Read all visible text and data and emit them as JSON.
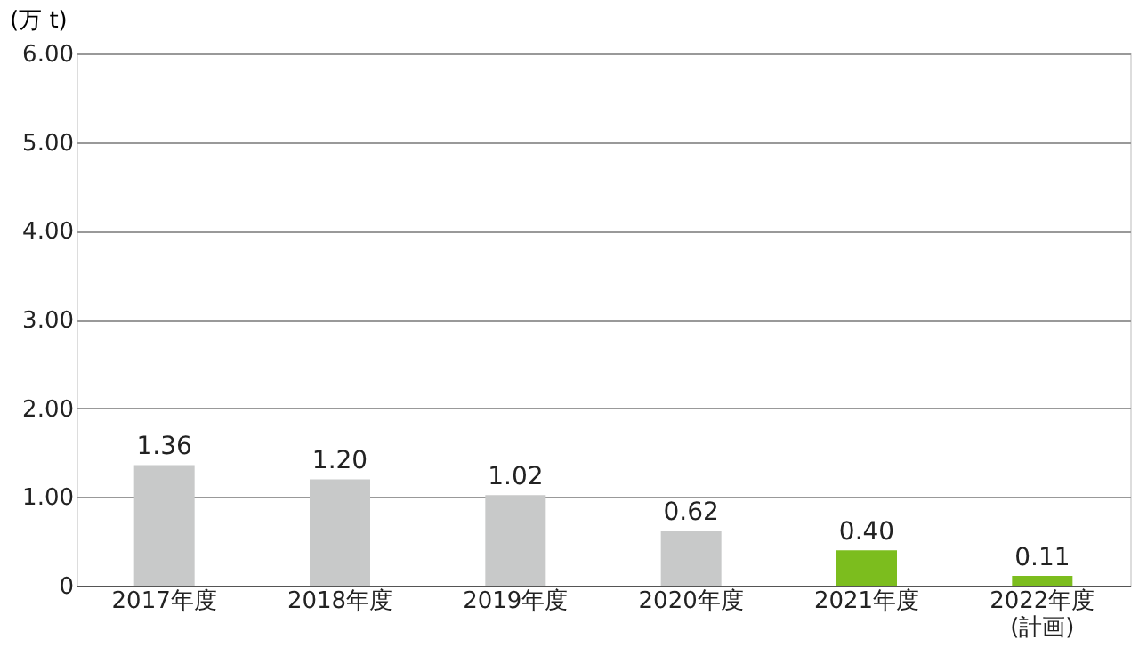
{
  "chart_data": {
    "type": "bar",
    "ylabel": "(万 t)",
    "categories": [
      "2017年度",
      "2018年度",
      "2019年度",
      "2020年度",
      "2021年度",
      "2022年度\n(計画)"
    ],
    "values": [
      1.36,
      1.2,
      1.02,
      0.62,
      0.4,
      0.11
    ],
    "colors": [
      "#c8c9c9",
      "#c8c9c9",
      "#c8c9c9",
      "#c8c9c9",
      "#7cbd1e",
      "#7cbd1e"
    ],
    "value_labels": [
      "1.36",
      "1.20",
      "1.02",
      "0.62",
      "0.40",
      "0.11"
    ],
    "ylim": [
      0,
      6
    ],
    "yticks": [
      0,
      {
        "value": 1,
        "label": "1.00"
      },
      {
        "value": 2,
        "label": "2.00"
      },
      {
        "value": 3,
        "label": "3.00"
      },
      {
        "value": 4,
        "label": "4.00"
      },
      {
        "value": 5,
        "label": "5.00"
      },
      {
        "value": 6,
        "label": "6.00"
      }
    ],
    "grid": "y"
  }
}
